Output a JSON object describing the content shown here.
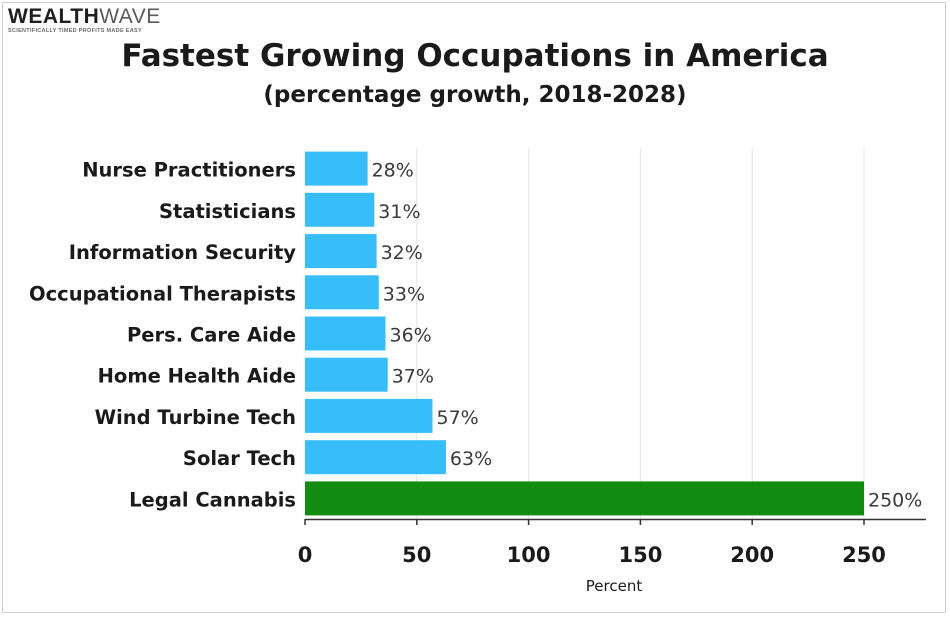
{
  "brand": {
    "name_part1": "WEALTH",
    "name_part2": "WAVE",
    "tagline": "SCIENTIFICALLY TIMED PROFITS MADE EASY"
  },
  "chart_data": {
    "type": "bar",
    "orientation": "horizontal",
    "title": "Fastest Growing Occupations in America",
    "subtitle": "(percentage growth, 2018-2028)",
    "xlabel": "Percent",
    "ylabel": "",
    "xlim": [
      0,
      275
    ],
    "xticks": [
      0,
      50,
      100,
      150,
      200,
      250
    ],
    "grid": true,
    "categories": [
      "Nurse Practitioners",
      "Statisticians",
      "Information Security",
      "Occupational Therapists",
      "Pers. Care Aide",
      "Home Health Aide",
      "Wind Turbine Tech",
      "Solar Tech",
      "Legal Cannabis"
    ],
    "values": [
      28,
      31,
      32,
      33,
      36,
      37,
      57,
      63,
      250
    ],
    "value_labels": [
      "28%",
      "31%",
      "32%",
      "33%",
      "36%",
      "37%",
      "57%",
      "63%",
      "250%"
    ],
    "colors": [
      "#38bdfb",
      "#38bdfb",
      "#38bdfb",
      "#38bdfb",
      "#38bdfb",
      "#38bdfb",
      "#38bdfb",
      "#38bdfb",
      "#138a10"
    ]
  }
}
